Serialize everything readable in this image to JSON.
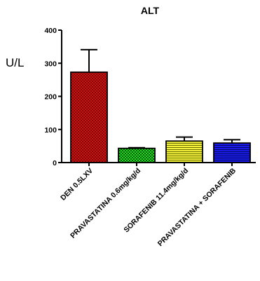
{
  "chart_data": {
    "type": "bar",
    "title": "ALT",
    "xlabel": "",
    "ylabel": "U/L",
    "ylim": [
      0,
      400
    ],
    "yticks": [
      0,
      100,
      200,
      300,
      400
    ],
    "categories": [
      "DEN 0.5LXV",
      "PRAVASTATINA 0.6mg/kg/d",
      "SORAFENIB 11.4mg/kg/d",
      "PRAVASTATINA + SORAFENIB"
    ],
    "values": [
      273,
      43,
      65,
      59
    ],
    "error": [
      68,
      2,
      12,
      10
    ],
    "colors": [
      "#e01818",
      "#22dd22",
      "#f2f23a",
      "#1a1ae6"
    ],
    "patterns": [
      "cross-hatch",
      "checker",
      "horizontal-lines",
      "horizontal-lines"
    ],
    "grid": false,
    "legend": "none"
  }
}
